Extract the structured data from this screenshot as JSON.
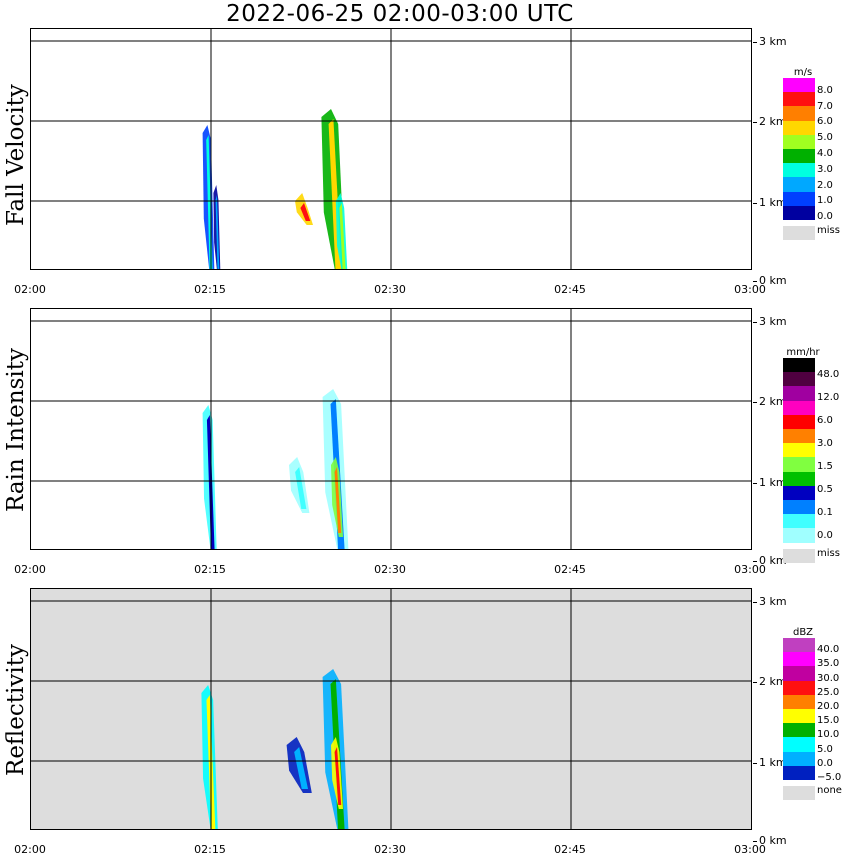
{
  "title": "2022-06-25  02:00-03:00 UTC",
  "x_ticks": [
    "02:00",
    "02:15",
    "02:30",
    "02:45",
    "03:00"
  ],
  "height_ticks": [
    "3 km",
    "2 km",
    "1 km",
    "0 km"
  ],
  "chart_data": [
    {
      "type": "heatmap",
      "ylabel": "Fall Velocity",
      "unit": "m/s",
      "x_range": [
        "02:00",
        "03:00"
      ],
      "y_range_km": [
        0,
        3
      ],
      "grid": true,
      "background": "#ffffff",
      "legend_labels": [
        "8.0",
        "7.0",
        "6.0",
        "5.0",
        "4.0",
        "3.0",
        "2.0",
        "1.0",
        "0.0"
      ],
      "colors": [
        "#ff00ff",
        "#ff1010",
        "#ff7f00",
        "#ffd700",
        "#a0ff20",
        "#00b000",
        "#00ffe0",
        "#00a8ff",
        "#0040ff",
        "#0000a0"
      ],
      "miss_label": "miss",
      "miss_color": "#dddddd",
      "echoes": [
        {
          "t_min": 14.3,
          "t_max": 15.3,
          "z_base_km": 0.0,
          "z_top_km": 1.95,
          "level": 6
        },
        {
          "t_min": 15.2,
          "t_max": 15.8,
          "z_base_km": 0.0,
          "z_top_km": 1.2,
          "level": 7
        },
        {
          "t_min": 22.0,
          "t_max": 23.5,
          "z_base_km": 0.7,
          "z_top_km": 1.1,
          "level": 1
        },
        {
          "t_min": 24.2,
          "t_max": 26.2,
          "z_base_km": 0.0,
          "z_top_km": 2.15,
          "level": 3
        },
        {
          "t_min": 25.4,
          "t_max": 26.4,
          "z_base_km": 0.0,
          "z_top_km": 1.1,
          "level": 4
        }
      ]
    },
    {
      "type": "heatmap",
      "ylabel": "Rain Intensity",
      "unit": "mm/hr",
      "x_range": [
        "02:00",
        "03:00"
      ],
      "y_range_km": [
        0,
        3
      ],
      "grid": true,
      "background": "#ffffff",
      "legend_labels": [
        "48.0",
        "12.0",
        "6.0",
        "3.0",
        "1.5",
        "0.5",
        "0.1",
        "0.0"
      ],
      "colors": [
        "#000000",
        "#500040",
        "#a000a0",
        "#ff00c0",
        "#ff0000",
        "#ff8000",
        "#ffff00",
        "#80ff40",
        "#00c000",
        "#0000c0",
        "#0080ff",
        "#40ffff",
        "#a0ffff"
      ],
      "miss_label": "miss",
      "miss_color": "#dddddd",
      "echoes": [
        {
          "t_min": 14.3,
          "t_max": 15.5,
          "z_base_km": 0.0,
          "z_top_km": 1.95,
          "level": 9
        },
        {
          "t_min": 21.5,
          "t_max": 23.2,
          "z_base_km": 0.6,
          "z_top_km": 1.3,
          "level": 11
        },
        {
          "t_min": 24.3,
          "t_max": 26.5,
          "z_base_km": 0.0,
          "z_top_km": 2.15,
          "level": 10
        },
        {
          "t_min": 25.0,
          "t_max": 26.0,
          "z_base_km": 0.3,
          "z_top_km": 1.3,
          "level": 5
        }
      ]
    },
    {
      "type": "heatmap",
      "ylabel": "Reflectivity",
      "unit": "dBZ",
      "x_range": [
        "02:00",
        "03:00"
      ],
      "y_range_km": [
        0,
        3
      ],
      "grid": true,
      "background": "#dddddd",
      "legend_labels": [
        "40.0",
        "35.0",
        "30.0",
        "25.0",
        "20.0",
        "15.0",
        "10.0",
        "5.0",
        "0.0",
        "−5.0"
      ],
      "colors": [
        "#c040c0",
        "#ff00ff",
        "#c000a0",
        "#ff1010",
        "#ff7f00",
        "#ffff00",
        "#00b000",
        "#00ffff",
        "#00b0ff",
        "#0020c0"
      ],
      "miss_label": "none",
      "miss_color": "#dddddd",
      "echoes": [
        {
          "t_min": 14.2,
          "t_max": 15.6,
          "z_base_km": 0.0,
          "z_top_km": 1.95,
          "level": 5
        },
        {
          "t_min": 21.3,
          "t_max": 23.4,
          "z_base_km": 0.6,
          "z_top_km": 1.3,
          "level": 8
        },
        {
          "t_min": 24.3,
          "t_max": 26.5,
          "z_base_km": 0.0,
          "z_top_km": 2.15,
          "level": 6
        },
        {
          "t_min": 25.0,
          "t_max": 26.0,
          "z_base_km": 0.4,
          "z_top_km": 1.3,
          "level": 3
        }
      ]
    }
  ]
}
